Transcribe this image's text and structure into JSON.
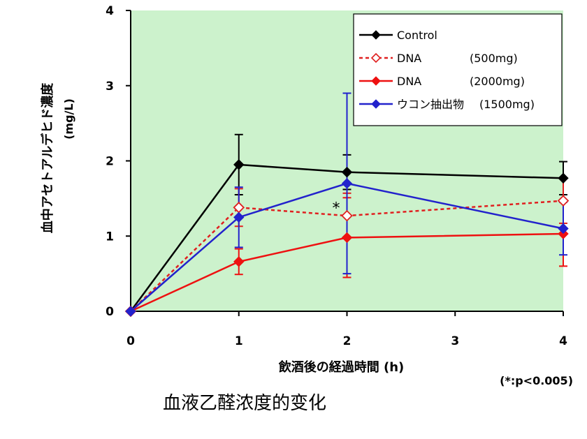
{
  "chart_data": {
    "type": "line",
    "ylabel_main": "血中アセトアルデヒド濃度",
    "ylabel_unit": "(mg/L)",
    "xlabel": "飲酒後の経過時間 (h)",
    "xlim": [
      0,
      4
    ],
    "ylim": [
      0,
      4
    ],
    "x_ticks": [
      "0",
      "1",
      "2",
      "3",
      "4"
    ],
    "y_ticks": [
      "0",
      "1",
      "2",
      "3",
      "4"
    ],
    "grid": false,
    "background_color": "#ccf2cc",
    "legend_position": "top-right",
    "series": [
      {
        "name": "Control",
        "legend_label": "Control",
        "legend_dose": "",
        "color": "#000000",
        "line_style": "solid",
        "marker": "filled-diamond",
        "x": [
          0,
          1,
          2,
          4
        ],
        "y": [
          0,
          1.95,
          1.85,
          1.77
        ],
        "err": [
          0,
          0.4,
          0.23,
          0.22
        ]
      },
      {
        "name": "DNA (500mg)",
        "legend_label": "DNA",
        "legend_dose": "(500mg)",
        "color": "#e02020",
        "line_style": "dotted",
        "marker": "open-diamond",
        "x": [
          0,
          1,
          2,
          4
        ],
        "y": [
          0,
          1.38,
          1.27,
          1.47
        ],
        "err": [
          0,
          0.25,
          0.3,
          0.3
        ]
      },
      {
        "name": "DNA (2000mg)",
        "legend_label": "DNA",
        "legend_dose": "(2000mg)",
        "color": "#ee1111",
        "line_style": "solid",
        "marker": "filled-diamond",
        "x": [
          0,
          1,
          2,
          4
        ],
        "y": [
          0,
          0.66,
          0.98,
          1.03
        ],
        "err": [
          0,
          0.17,
          0.53,
          0.43
        ]
      },
      {
        "name": "ウコン抽出物 (1500mg)",
        "legend_label": "ウコン抽出物",
        "legend_dose": "(1500mg)",
        "color": "#2222cc",
        "line_style": "solid",
        "marker": "filled-diamond",
        "x": [
          0,
          1,
          2,
          4
        ],
        "y": [
          0,
          1.25,
          1.7,
          1.1
        ],
        "err": [
          0,
          0.4,
          1.2,
          0.35
        ]
      }
    ],
    "annotations": [
      {
        "text": "*",
        "x": 1.9,
        "y": 1.38
      }
    ]
  },
  "footnote": "(*:p<0.005)",
  "caption": "血液乙醛浓度的变化"
}
